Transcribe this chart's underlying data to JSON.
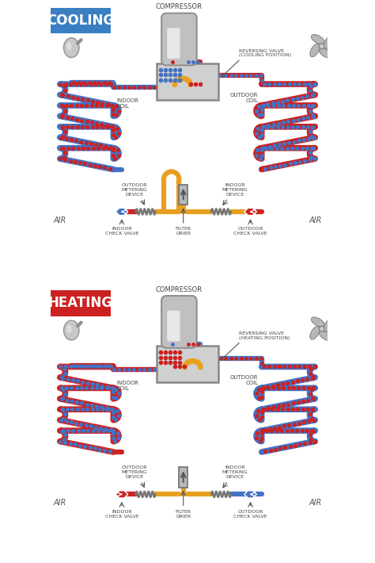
{
  "bg_color": "#ffffff",
  "cooling_label_bg": "#3a7fc1",
  "heating_label_bg": "#cc2222",
  "blue_pipe": "#4472c4",
  "red_pipe": "#cc2222",
  "orange_pipe": "#e8a020",
  "gray_color": "#aaaaaa",
  "dark_gray": "#888888",
  "title_cooling": "COOLING",
  "title_heating": "HEATING",
  "compressor_label": "COMPRESSOR",
  "reversing_valve_cooling": "REVERSING VALVE\n(COOLING POSITION)",
  "reversing_valve_heating": "REVERSING VALVE\n(HEATING POSITION)",
  "outdoor_coil_label": "OUTDOOR\nCOIL",
  "indoor_coil_label": "INDOOR\nCOIL",
  "outdoor_metering_label": "OUTDOOR\nMETERING\nDEVICE",
  "indoor_metering_label": "INDOOR\nMETERING\nDEVICE",
  "indoor_check_valve_label": "INDOOR\nCHECK VALVE",
  "outdoor_check_valve_label": "OUTDOOR\nCHECK VALVE",
  "filter_drier_label": "FILTER\nDRIER",
  "air_label": "AIR",
  "pipe_lw": 4.5,
  "dot_pipe_lw": 4.0,
  "coil_lw": 5.5
}
